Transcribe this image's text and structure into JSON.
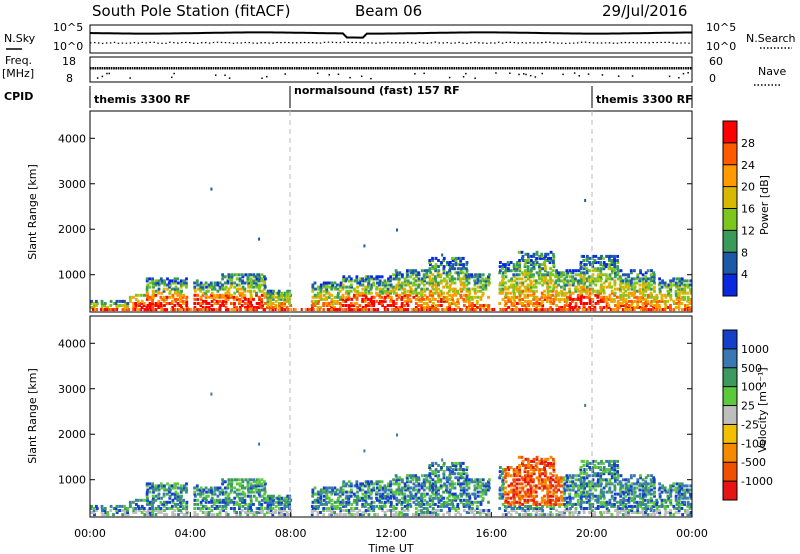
{
  "header": {
    "station": "South Pole Station (fitACF)",
    "beam": "Beam 06",
    "date": "29/Jul/2016"
  },
  "chart_data": [
    {
      "type": "line",
      "panel": "noise",
      "left_label": "N.Sky",
      "right_label": "N.Search",
      "left_ticks": [
        "10^5",
        "10^0"
      ],
      "right_ticks": [
        "10^5",
        "10^0"
      ],
      "x_ticks": [
        "00:00",
        "04:00",
        "08:00",
        "12:00",
        "16:00",
        "20:00",
        "00:00"
      ]
    },
    {
      "type": "line",
      "panel": "frequency",
      "left_label_1": "Freq.",
      "left_label_2": "[MHz]",
      "right_label": "Nave",
      "left_ticks": [
        "18",
        "8"
      ],
      "right_ticks": [
        "60",
        "0"
      ]
    },
    {
      "type": "table",
      "panel": "cpid",
      "label": "CPID",
      "segments": [
        {
          "label": "themis 3300 RF",
          "start_hour": 0,
          "end_hour": 8
        },
        {
          "label": "normalsound (fast) 157 RF",
          "start_hour": 8,
          "end_hour": 20
        },
        {
          "label": "themis 3300 RF",
          "start_hour": 20,
          "end_hour": 24
        }
      ]
    },
    {
      "type": "heatmap",
      "panel": "power",
      "ylabel": "Slant Range [km]",
      "xlim": [
        0,
        24
      ],
      "ylim": [
        180,
        4600
      ],
      "y_ticks": [
        "1000",
        "2000",
        "3000",
        "4000"
      ],
      "x_ticks": [
        "00:00",
        "04:00",
        "08:00",
        "12:00",
        "16:00",
        "20:00",
        "00:00"
      ],
      "colorbar": {
        "label": "Power [dB]",
        "ticks": [
          "28",
          "24",
          "20",
          "16",
          "12",
          "8",
          "4"
        ],
        "colors": [
          "#ff0000",
          "#ff5a00",
          "#ff9a00",
          "#d8b800",
          "#7cc61e",
          "#3a9a5a",
          "#1c5aa8",
          "#0a28e0"
        ]
      },
      "dashed_lines_at_hours": [
        8,
        20
      ]
    },
    {
      "type": "heatmap",
      "panel": "velocity",
      "ylabel": "Slant Range [km]",
      "xlabel": "Time UT",
      "xlim": [
        0,
        24
      ],
      "ylim": [
        180,
        4600
      ],
      "y_ticks": [
        "1000",
        "2000",
        "3000",
        "4000"
      ],
      "x_ticks": [
        "00:00",
        "04:00",
        "08:00",
        "12:00",
        "16:00",
        "20:00",
        "00:00"
      ],
      "colorbar": {
        "label": "Velocity [m s⁻¹]",
        "ticks": [
          "1000",
          "500",
          "100",
          "25",
          "-25",
          "-100",
          "-500",
          "-1000"
        ],
        "colors": [
          "#1440c8",
          "#3a78b4",
          "#3c9a60",
          "#5cc83c",
          "#bebebe",
          "#f2c000",
          "#f58a00",
          "#f05000",
          "#e61414"
        ]
      },
      "dashed_lines_at_hours": [
        8,
        20
      ]
    }
  ]
}
